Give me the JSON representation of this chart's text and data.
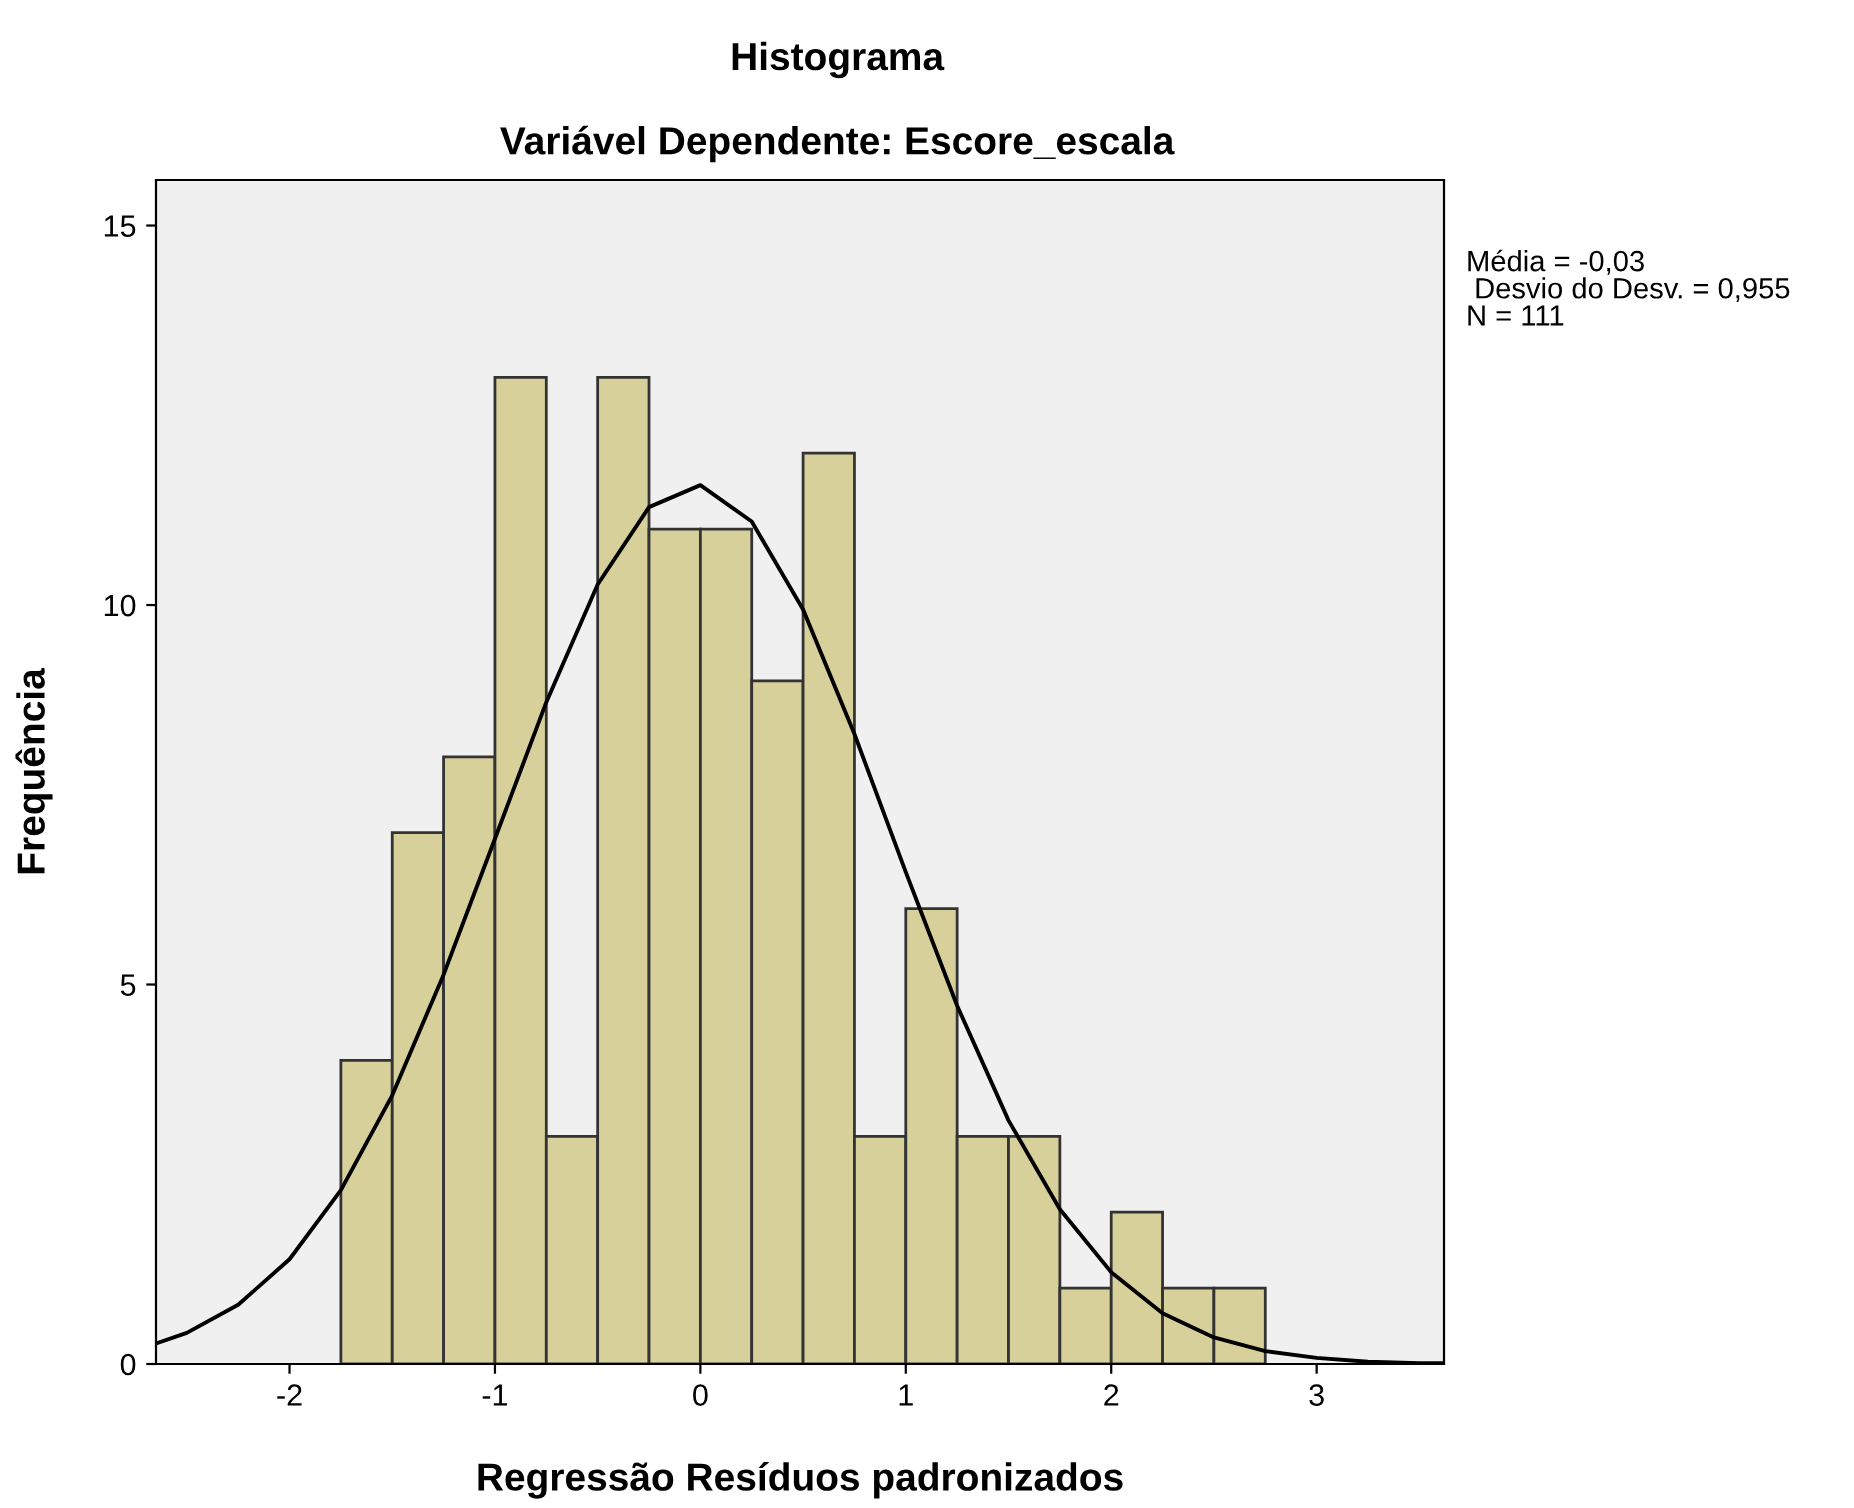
{
  "chart_data": {
    "type": "histogram",
    "title": "Histograma",
    "subtitle": "Variável Dependente: Escore_escala",
    "xlabel": "Regressão Resíduos padronizados",
    "ylabel": "Frequência",
    "bins": [
      -1.75,
      -1.5,
      -1.25,
      -1.0,
      -0.75,
      -0.5,
      -0.25,
      0.0,
      0.25,
      0.5,
      0.75,
      1.0,
      1.25,
      1.5,
      1.75,
      2.0,
      2.25,
      2.5,
      2.75
    ],
    "values": [
      4,
      7,
      8,
      13,
      3,
      13,
      11,
      11,
      9,
      12,
      3,
      6,
      3,
      3,
      1,
      2,
      1,
      1
    ],
    "color": "#d7d09b",
    "series": [
      {
        "type": "line",
        "color": "#000000",
        "x": [
          -2.65,
          -2.5,
          -2.25,
          -2.0,
          -1.75,
          -1.5,
          -1.25,
          -1.0,
          -0.75,
          -0.5,
          -0.25,
          0.0,
          0.25,
          0.5,
          0.75,
          1.0,
          1.25,
          1.5,
          1.75,
          2.0,
          2.25,
          2.5,
          2.75,
          3.0,
          3.25,
          3.5,
          3.62
        ],
        "values": [
          0.27,
          0.41,
          0.78,
          1.38,
          2.29,
          3.54,
          5.13,
          6.92,
          8.72,
          10.27,
          11.29,
          11.58,
          11.1,
          9.94,
          8.3,
          6.48,
          4.72,
          3.21,
          2.04,
          1.21,
          0.67,
          0.35,
          0.17,
          0.08,
          0.03,
          0.01,
          0.01
        ]
      }
    ],
    "xlim": [
      -2.65,
      3.62
    ],
    "ylim": [
      0,
      15.6
    ],
    "xticks": [
      -2,
      -1,
      0,
      1,
      2,
      3
    ],
    "yticks": [
      0,
      5,
      10,
      15
    ],
    "grid": false,
    "annotations": [
      "Média = -0,03\n Desvio do Desv. = 0,955\nN = 111"
    ]
  }
}
